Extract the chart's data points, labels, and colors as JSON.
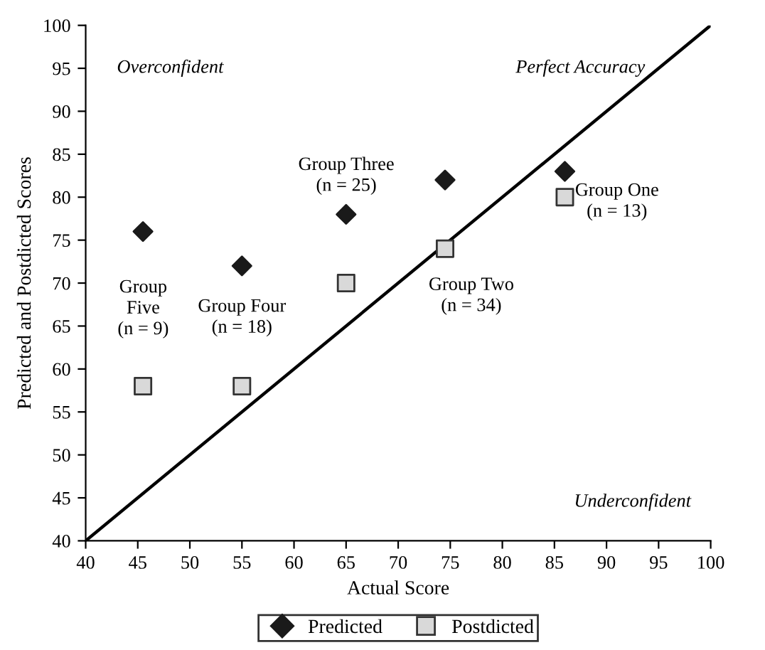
{
  "chart_data": {
    "type": "scatter",
    "xlabel": "Actual Score",
    "ylabel": "Predicted and Postdicted Scores",
    "x": [
      45.5,
      55,
      65,
      74.5,
      86
    ],
    "series": [
      {
        "name": "Predicted",
        "color": "#1a1a1a",
        "marker": "diamond",
        "values": [
          76,
          72,
          78,
          82,
          83
        ]
      },
      {
        "name": "Postdicted",
        "color": "#d9d9d9",
        "marker": "square",
        "values": [
          58,
          58,
          70,
          74,
          80
        ]
      },
      {
        "type": "line",
        "color": "#000000",
        "x": [
          40,
          100
        ],
        "values": [
          40,
          100
        ],
        "marker": "none"
      }
    ],
    "annotations": [
      "Overconfident",
      "Perfect Accuracy",
      "Underconfident",
      "Group Three\n(n = 25)",
      "Group One\n(n = 13)",
      "Group Two\n(n = 34)",
      "Group\nFive\n(n = 9)",
      "Group Four\n(n = 18)"
    ],
    "xlim": [
      40,
      100
    ],
    "ylim": [
      40,
      100
    ],
    "xticks": [
      40,
      45,
      50,
      55,
      60,
      65,
      70,
      75,
      80,
      85,
      90,
      95,
      100
    ],
    "yticks": [
      40,
      45,
      50,
      55,
      60,
      65,
      70,
      75,
      80,
      85,
      90,
      95,
      100
    ],
    "grid": false,
    "legend": "bottom"
  }
}
